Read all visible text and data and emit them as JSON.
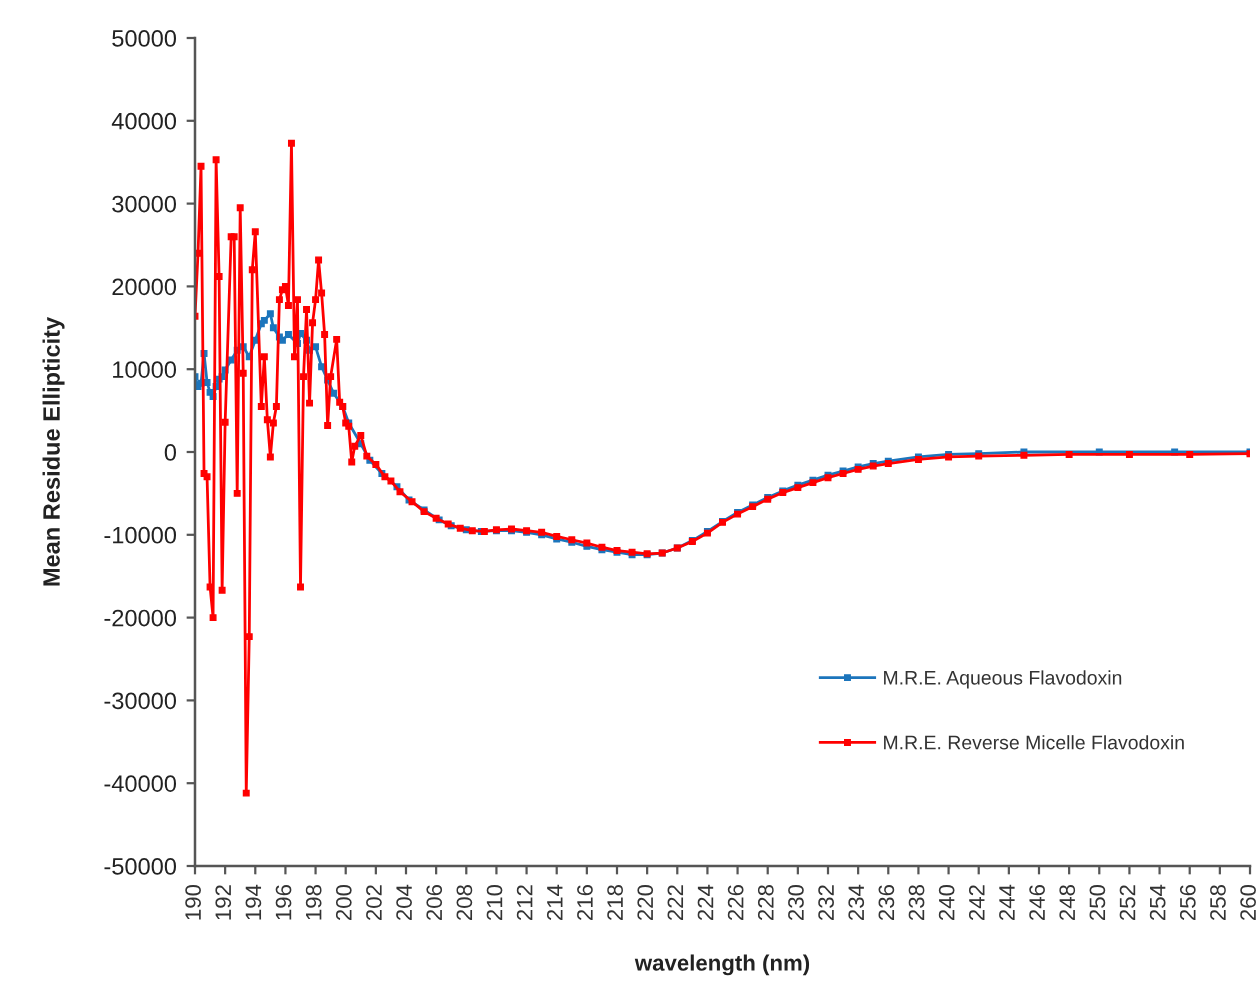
{
  "chart_data": {
    "type": "line",
    "xlabel": "wavelength (nm)",
    "ylabel": "Mean Residue Ellipticity",
    "xlim": [
      190,
      260
    ],
    "xticks": [
      190,
      192,
      194,
      196,
      198,
      200,
      202,
      204,
      206,
      208,
      210,
      212,
      214,
      216,
      218,
      220,
      222,
      224,
      226,
      228,
      230,
      232,
      234,
      236,
      238,
      240,
      242,
      244,
      246,
      248,
      250,
      252,
      254,
      256,
      258,
      260
    ],
    "ylim": [
      -50000,
      50000
    ],
    "yticks": [
      -50000,
      -40000,
      -30000,
      -20000,
      -10000,
      0,
      10000,
      20000,
      30000,
      40000,
      50000
    ],
    "grid": false,
    "legend": "bottom right",
    "marker": "square",
    "line_style": "solid",
    "series": [
      {
        "name": "M.R.E. Aqueous Flavodoxin",
        "color": "#1c75bc",
        "x": [
          190.0,
          190.2,
          190.4,
          190.6,
          190.8,
          191.0,
          191.2,
          191.4,
          191.6,
          191.8,
          192.0,
          192.4,
          192.8,
          193.2,
          193.6,
          194.0,
          194.4,
          194.6,
          195.0,
          195.2,
          195.6,
          195.8,
          196.2,
          196.8,
          197.0,
          197.4,
          197.6,
          198.0,
          198.4,
          198.8,
          199.2,
          199.8,
          200.2,
          201.0,
          201.6,
          202.4,
          203.4,
          204.2,
          205.2,
          206.2,
          207.0,
          208.0,
          209.0,
          210.0,
          211.0,
          212.0,
          213.0,
          214.0,
          215.0,
          216.0,
          217.0,
          218.0,
          219.0,
          220.0,
          221.0,
          222.0,
          223.0,
          224.0,
          225.0,
          226.0,
          227.0,
          228.0,
          229.0,
          230.0,
          231.0,
          232.0,
          233.0,
          234.0,
          235.0,
          236.0,
          238.0,
          240.0,
          242.0,
          245.0,
          250.0,
          255.0,
          260.0
        ],
        "values": [
          9100,
          7900,
          8300,
          11900,
          8400,
          7200,
          6700,
          7900,
          8800,
          9100,
          9900,
          11100,
          12300,
          12700,
          11500,
          13500,
          15500,
          15900,
          16700,
          15000,
          13900,
          13500,
          14200,
          13100,
          14300,
          13500,
          12300,
          12700,
          10300,
          8700,
          7100,
          5500,
          3500,
          1000,
          -1000,
          -2600,
          -4200,
          -5800,
          -7000,
          -8200,
          -8900,
          -9400,
          -9600,
          -9500,
          -9500,
          -9700,
          -10000,
          -10500,
          -10900,
          -11400,
          -11800,
          -12100,
          -12400,
          -12400,
          -12200,
          -11600,
          -10700,
          -9600,
          -8400,
          -7300,
          -6400,
          -5500,
          -4700,
          -4000,
          -3400,
          -2800,
          -2300,
          -1800,
          -1400,
          -1100,
          -600,
          -300,
          -200,
          0,
          0,
          0,
          0
        ]
      },
      {
        "name": "M.R.E. Reverse Micelle Flavodoxin",
        "color": "#ff0000",
        "x": [
          190.0,
          190.2,
          190.4,
          190.6,
          190.8,
          191.0,
          191.2,
          191.4,
          191.6,
          191.8,
          192.0,
          192.4,
          192.6,
          192.8,
          193.0,
          193.2,
          193.4,
          193.6,
          193.8,
          194.0,
          194.4,
          194.6,
          194.8,
          195.0,
          195.2,
          195.4,
          195.6,
          195.8,
          196.0,
          196.2,
          196.4,
          196.6,
          196.8,
          197.0,
          197.2,
          197.4,
          197.6,
          197.8,
          198.0,
          198.2,
          198.4,
          198.6,
          198.8,
          199.0,
          199.4,
          199.6,
          199.8,
          200.0,
          200.2,
          200.4,
          200.6,
          201.0,
          201.4,
          202.0,
          202.6,
          203.0,
          203.6,
          204.4,
          205.2,
          206.0,
          206.8,
          207.6,
          208.4,
          209.2,
          210.0,
          211.0,
          212.0,
          213.0,
          214.0,
          215.0,
          216.0,
          217.0,
          218.0,
          219.0,
          220.0,
          221.0,
          222.0,
          223.0,
          224.0,
          225.0,
          226.0,
          227.0,
          228.0,
          229.0,
          230.0,
          231.0,
          232.0,
          233.0,
          234.0,
          235.0,
          236.0,
          238.0,
          240.0,
          242.0,
          245.0,
          248.0,
          252.0,
          256.0,
          260.0
        ],
        "values": [
          16400,
          24000,
          34500,
          -2600,
          -3000,
          -16300,
          -20000,
          35300,
          21200,
          -16700,
          3600,
          26000,
          26000,
          -5000,
          29500,
          9500,
          -41200,
          -22300,
          22000,
          26600,
          5500,
          11500,
          3900,
          -600,
          3500,
          5500,
          18400,
          19600,
          20000,
          17700,
          37300,
          11500,
          18400,
          -16300,
          9100,
          17200,
          5900,
          15600,
          18400,
          23200,
          19200,
          14200,
          3200,
          9100,
          13600,
          6000,
          5500,
          3500,
          3100,
          -1200,
          700,
          2000,
          -500,
          -1500,
          -3000,
          -3500,
          -4800,
          -6000,
          -7200,
          -8000,
          -8700,
          -9200,
          -9500,
          -9600,
          -9400,
          -9300,
          -9500,
          -9700,
          -10200,
          -10600,
          -11000,
          -11500,
          -11900,
          -12100,
          -12300,
          -12200,
          -11600,
          -10800,
          -9800,
          -8500,
          -7500,
          -6600,
          -5700,
          -4900,
          -4300,
          -3700,
          -3100,
          -2600,
          -2100,
          -1700,
          -1400,
          -900,
          -600,
          -500,
          -400,
          -300,
          -300,
          -300,
          -200
        ]
      }
    ]
  }
}
